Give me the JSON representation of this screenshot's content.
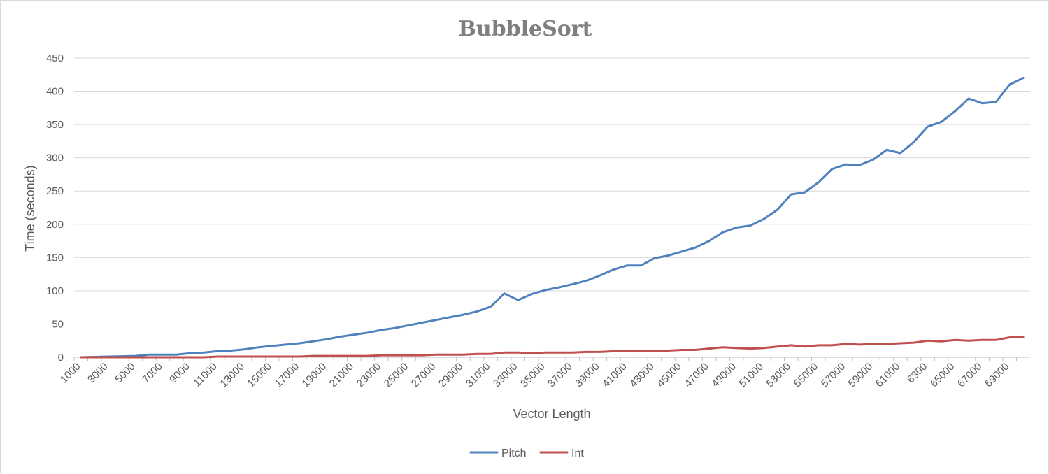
{
  "chart_data": {
    "type": "line",
    "title": "BubbleSort",
    "xlabel": "Vector Length",
    "ylabel": "Time (seconds)",
    "ylim": [
      0,
      450
    ],
    "yticks": [
      0,
      50,
      100,
      150,
      200,
      250,
      300,
      350,
      400,
      450
    ],
    "grid": true,
    "legend_position": "bottom",
    "categories": [
      "1000",
      "2000",
      "3000",
      "4000",
      "5000",
      "6000",
      "7000",
      "8000",
      "9000",
      "10000",
      "11000",
      "12000",
      "13000",
      "14000",
      "15000",
      "16000",
      "17000",
      "18000",
      "19000",
      "20000",
      "21000",
      "22000",
      "23000",
      "24000",
      "25000",
      "26000",
      "27000",
      "28000",
      "29000",
      "30000",
      "31000",
      "32000",
      "33000",
      "34000",
      "35000",
      "36000",
      "37000",
      "38000",
      "39000",
      "40000",
      "41000",
      "42000",
      "43000",
      "44000",
      "45000",
      "46000",
      "47000",
      "48000",
      "49000",
      "50000",
      "51000",
      "52000",
      "53000",
      "54000",
      "55000",
      "56000",
      "57000",
      "58000",
      "59000",
      "60000",
      "61000",
      "62000",
      "6300",
      "64000",
      "65000",
      "66000",
      "67000",
      "68000",
      "69000",
      "70000"
    ],
    "series": [
      {
        "name": "Pitch",
        "color": "#4f81bd",
        "values": [
          0,
          0.5,
          1,
          1.5,
          2,
          4,
          4,
          4,
          6,
          7,
          9,
          10,
          12,
          15,
          17,
          19,
          21,
          24,
          27,
          31,
          34,
          37,
          41,
          44,
          48,
          52,
          56,
          60,
          64,
          69,
          76,
          96,
          86,
          95,
          101,
          105,
          110,
          115,
          123,
          132,
          138,
          138,
          149,
          153,
          159,
          165,
          175,
          188,
          195,
          198,
          208,
          222,
          245,
          248,
          263,
          283,
          290,
          289,
          297,
          312,
          307,
          324,
          347,
          354,
          370,
          389,
          382,
          384,
          410,
          420
        ]
      },
      {
        "name": "Int",
        "color": "#c0504d",
        "values": [
          0,
          0,
          0,
          0,
          0,
          0,
          0,
          0,
          0,
          0,
          1,
          1,
          1,
          1,
          1,
          1,
          1,
          2,
          2,
          2,
          2,
          2,
          3,
          3,
          3,
          3,
          4,
          4,
          4,
          5,
          5,
          7,
          7,
          6,
          7,
          7,
          7,
          8,
          8,
          9,
          9,
          9,
          10,
          10,
          11,
          11,
          13,
          15,
          14,
          13,
          14,
          16,
          18,
          16,
          18,
          18,
          20,
          19,
          20,
          20,
          21,
          22,
          25,
          24,
          26,
          25,
          26,
          26,
          30,
          30
        ]
      }
    ],
    "tick_label_every": 2
  }
}
